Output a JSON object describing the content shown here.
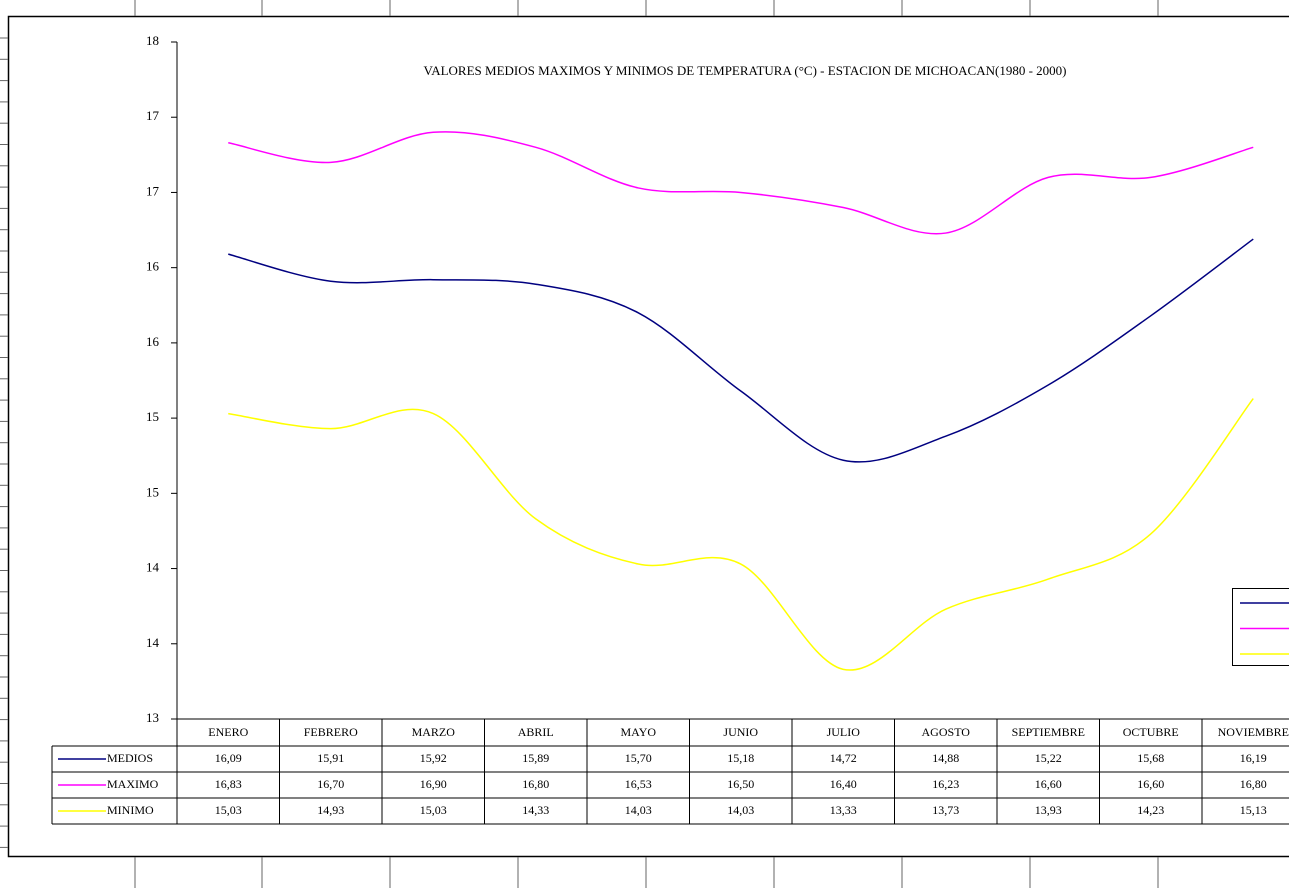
{
  "chart_data": {
    "type": "line",
    "title": "VALORES  MEDIOS MAXIMOS Y MINIMOS DE TEMPERATURA  (°C) -  ESTACION DE MICHOACAN(1980 - 2000)",
    "categories": [
      "ENERO",
      "FEBRERO",
      "MARZO",
      "ABRIL",
      "MAYO",
      "JUNIO",
      "JULIO",
      "AGOSTO",
      "SEPTIEMBRE",
      "OCTUBRE",
      "NOVIEMBRE"
    ],
    "series": [
      {
        "name": "MEDIOS",
        "color": "#000080",
        "values": [
          16.09,
          15.91,
          15.92,
          15.89,
          15.7,
          15.18,
          14.72,
          14.88,
          15.22,
          15.68,
          16.19
        ],
        "value_labels": [
          "16,09",
          "15,91",
          "15,92",
          "15,89",
          "15,70",
          "15,18",
          "14,72",
          "14,88",
          "15,22",
          "15,68",
          "16,19"
        ]
      },
      {
        "name": "MAXIMO",
        "color": "#ff00ff",
        "values": [
          16.83,
          16.7,
          16.9,
          16.8,
          16.53,
          16.5,
          16.4,
          16.23,
          16.6,
          16.6,
          16.8
        ],
        "value_labels": [
          "16,83",
          "16,70",
          "16,90",
          "16,80",
          "16,53",
          "16,50",
          "16,40",
          "16,23",
          "16,60",
          "16,60",
          "16,80"
        ]
      },
      {
        "name": "MINIMO",
        "color": "#ffff00",
        "values": [
          15.03,
          14.93,
          15.03,
          14.33,
          14.03,
          14.03,
          13.33,
          13.73,
          13.93,
          14.23,
          15.13
        ],
        "value_labels": [
          "15,03",
          "14,93",
          "15,03",
          "14,33",
          "14,03",
          "14,03",
          "13,33",
          "13,73",
          "13,93",
          "14,23",
          "15,13"
        ]
      }
    ],
    "ylim": [
      13,
      17.5
    ],
    "yticks": [
      {
        "value": 13,
        "label": "13"
      },
      {
        "value": 13.5,
        "label": "14"
      },
      {
        "value": 14,
        "label": "14"
      },
      {
        "value": 14.5,
        "label": "15"
      },
      {
        "value": 15,
        "label": "15"
      },
      {
        "value": 15.5,
        "label": "16"
      },
      {
        "value": 16,
        "label": "16"
      },
      {
        "value": 16.5,
        "label": "17"
      },
      {
        "value": 17,
        "label": "17"
      },
      {
        "value": 17.5,
        "label": "18"
      }
    ],
    "legend": "right"
  }
}
